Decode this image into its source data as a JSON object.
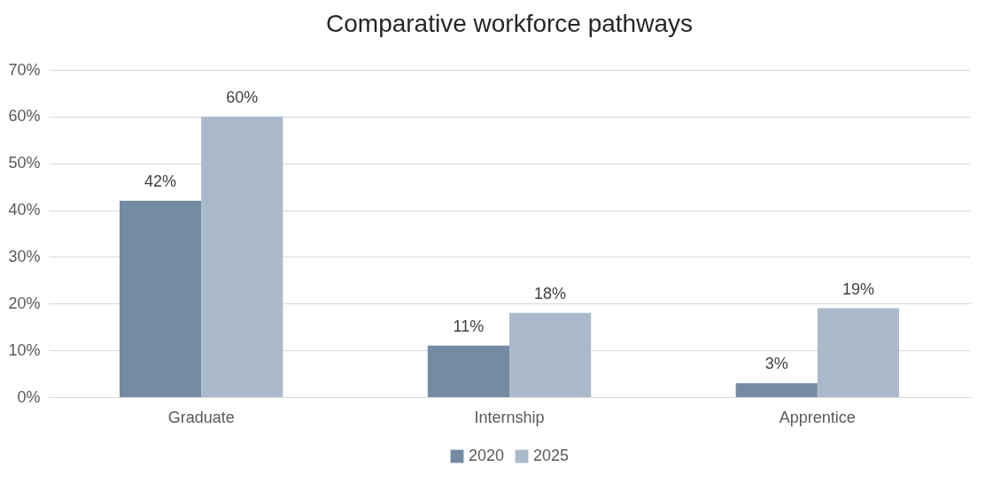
{
  "chart_data": {
    "type": "bar",
    "title": "Comparative workforce pathways",
    "categories": [
      "Graduate",
      "Internship",
      "Apprentice"
    ],
    "series": [
      {
        "name": "2020",
        "color": "#758ba3",
        "values": [
          42,
          11,
          3
        ],
        "value_labels": [
          "42%",
          "11%",
          "3%"
        ]
      },
      {
        "name": "2025",
        "color": "#abbacb",
        "values": [
          60,
          18,
          19
        ],
        "value_labels": [
          "60%",
          "18%",
          "19%"
        ]
      }
    ],
    "ylim": [
      0,
      70
    ],
    "yticks": [
      {
        "value": 0,
        "label": "0%"
      },
      {
        "value": 10,
        "label": "10%"
      },
      {
        "value": 20,
        "label": "20%"
      },
      {
        "value": 30,
        "label": "30%"
      },
      {
        "value": 40,
        "label": "40%"
      },
      {
        "value": 50,
        "label": "50%"
      },
      {
        "value": 60,
        "label": "60%"
      },
      {
        "value": 70,
        "label": "70%"
      }
    ],
    "grid": "y",
    "legend": "bottom"
  }
}
